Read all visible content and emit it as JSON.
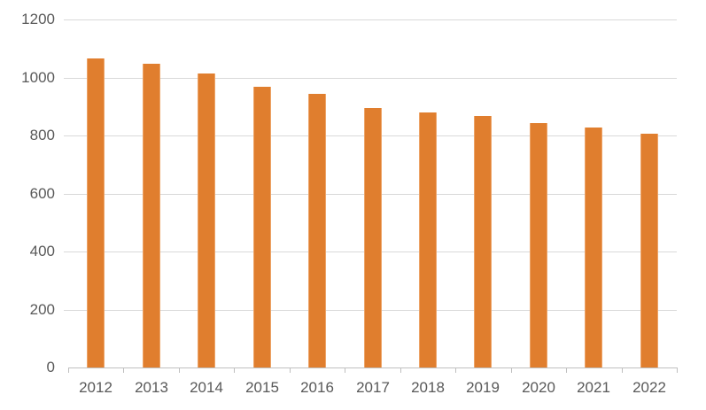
{
  "chart_data": {
    "type": "bar",
    "title": "",
    "xlabel": "",
    "ylabel": "",
    "categories": [
      "2012",
      "2013",
      "2014",
      "2015",
      "2016",
      "2017",
      "2018",
      "2019",
      "2020",
      "2021",
      "2022"
    ],
    "values": [
      1066,
      1047,
      1014,
      969,
      945,
      896,
      881,
      868,
      843,
      829,
      805
    ],
    "ylim": [
      0,
      1200
    ],
    "yticks": [
      0,
      200,
      400,
      600,
      800,
      1000,
      1200
    ],
    "grid": true,
    "legend": false,
    "bar_color": "#e07e2e",
    "bar_edge_color": "#eda468",
    "gridline_color": "#d9d9d9",
    "axis_color": "#bfbfbf",
    "label_color": "#595959"
  }
}
